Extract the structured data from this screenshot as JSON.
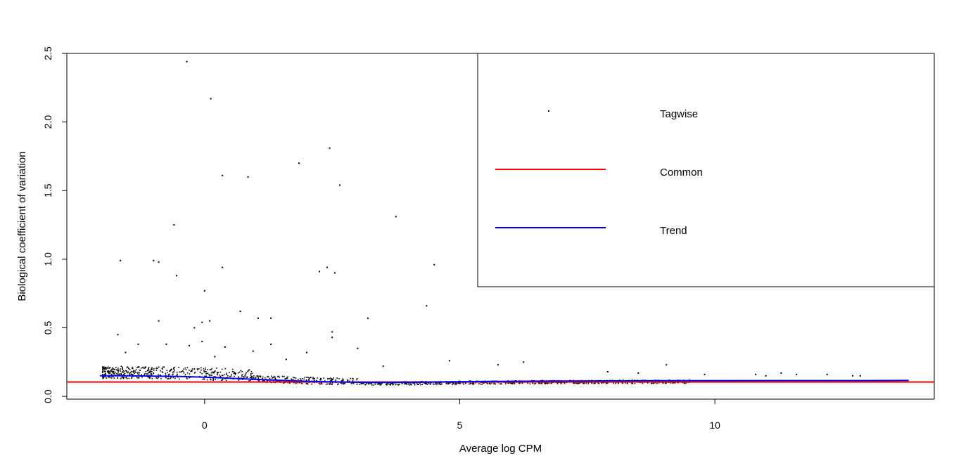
{
  "chart_data": {
    "type": "scatter",
    "title": "",
    "xlabel": "Average log CPM",
    "ylabel": "Biological coefficient of variation",
    "xlim": [
      -2.7,
      14.3
    ],
    "ylim": [
      -0.02,
      2.5
    ],
    "x_ticks": [
      0,
      5,
      10
    ],
    "y_ticks": [
      0.0,
      0.5,
      1.0,
      1.5,
      2.0,
      2.5
    ],
    "x_tick_labels": [
      "0",
      "5",
      "10"
    ],
    "y_tick_labels": [
      "0.0",
      "0.5",
      "1.0",
      "1.5",
      "2.0",
      "2.5"
    ],
    "grid": false,
    "legend_position": "top-right",
    "legend": [
      {
        "label": "Tagwise",
        "type": "point",
        "color": "#000000"
      },
      {
        "label": "Common",
        "type": "line",
        "color": "#ff0000"
      },
      {
        "label": "Trend",
        "type": "line",
        "color": "#0000ff"
      }
    ],
    "series": [
      {
        "name": "Tagwise",
        "kind": "points",
        "color": "#000000",
        "points": [
          [
            -0.35,
            2.44
          ],
          [
            0.12,
            2.17
          ],
          [
            2.45,
            1.81
          ],
          [
            1.85,
            1.7
          ],
          [
            0.35,
            1.61
          ],
          [
            0.85,
            1.6
          ],
          [
            2.65,
            1.54
          ],
          [
            3.75,
            1.31
          ],
          [
            -0.6,
            1.25
          ],
          [
            -1.65,
            0.99
          ],
          [
            -1.0,
            0.99
          ],
          [
            -0.9,
            0.98
          ],
          [
            0.35,
            0.94
          ],
          [
            2.4,
            0.94
          ],
          [
            2.25,
            0.91
          ],
          [
            2.55,
            0.9
          ],
          [
            4.5,
            0.96
          ],
          [
            -0.55,
            0.88
          ],
          [
            0.0,
            0.77
          ],
          [
            4.35,
            0.66
          ],
          [
            0.7,
            0.62
          ],
          [
            1.05,
            0.57
          ],
          [
            1.3,
            0.57
          ],
          [
            3.2,
            0.57
          ],
          [
            -0.9,
            0.55
          ],
          [
            0.1,
            0.55
          ],
          [
            -0.05,
            0.54
          ],
          [
            -0.2,
            0.5
          ],
          [
            2.5,
            0.47
          ],
          [
            2.5,
            0.43
          ],
          [
            -1.7,
            0.45
          ],
          [
            -0.05,
            0.4
          ],
          [
            3.0,
            0.35
          ],
          [
            0.4,
            0.36
          ],
          [
            -1.3,
            0.38
          ],
          [
            -0.3,
            0.37
          ],
          [
            -1.55,
            0.32
          ],
          [
            0.95,
            0.33
          ],
          [
            2.0,
            0.32
          ],
          [
            4.8,
            0.26
          ],
          [
            5.75,
            0.23
          ],
          [
            6.25,
            0.25
          ],
          [
            9.05,
            0.23
          ],
          [
            1.3,
            0.38
          ],
          [
            -0.75,
            0.38
          ],
          [
            0.2,
            0.29
          ],
          [
            1.6,
            0.27
          ],
          [
            3.5,
            0.22
          ],
          [
            7.9,
            0.18
          ],
          [
            10.8,
            0.16
          ],
          [
            11.3,
            0.17
          ],
          [
            11.6,
            0.16
          ],
          [
            12.2,
            0.16
          ],
          [
            12.7,
            0.15
          ],
          [
            12.85,
            0.15
          ],
          [
            11.0,
            0.15
          ],
          [
            9.8,
            0.16
          ],
          [
            8.5,
            0.17
          ]
        ]
      },
      {
        "name": "Common",
        "kind": "hline",
        "color": "#ff0000",
        "y": 0.105
      },
      {
        "name": "Trend",
        "kind": "line",
        "color": "#0000ff",
        "x": [
          -2.05,
          -1.5,
          -1.0,
          -0.5,
          0.0,
          0.5,
          1.0,
          1.5,
          2.0,
          2.5,
          3.0,
          3.5,
          4.0,
          4.5,
          5.0,
          6.0,
          7.0,
          8.0,
          9.0,
          10.0,
          11.0,
          12.0,
          13.0,
          13.8
        ],
        "y": [
          0.15,
          0.15,
          0.148,
          0.145,
          0.14,
          0.132,
          0.124,
          0.117,
          0.11,
          0.106,
          0.103,
          0.102,
          0.103,
          0.105,
          0.107,
          0.11,
          0.112,
          0.113,
          0.114,
          0.114,
          0.115,
          0.115,
          0.115,
          0.116
        ]
      }
    ]
  }
}
